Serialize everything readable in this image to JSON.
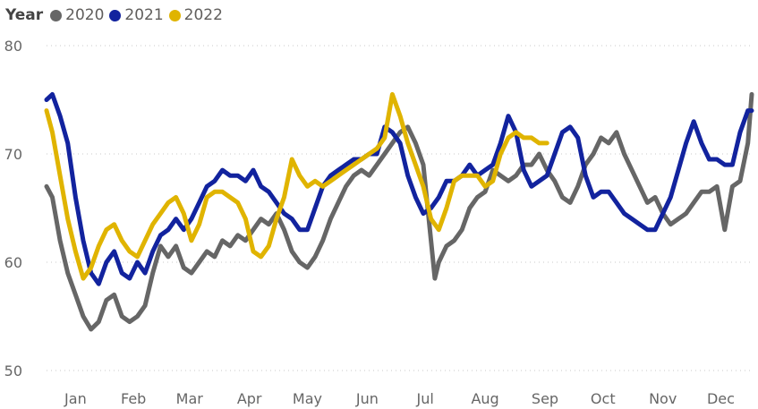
{
  "chart_data": {
    "type": "line",
    "title": "",
    "xlabel": "",
    "ylabel": "",
    "legend": {
      "title": "Year",
      "placement": "top-left"
    },
    "ylim": [
      50,
      80
    ],
    "yticks": [
      50,
      60,
      70,
      80
    ],
    "grid": {
      "y": true,
      "x": false,
      "style": "dotted"
    },
    "x_unit": "day of year",
    "xlim": [
      1,
      366
    ],
    "xticks": [
      {
        "label": "Jan",
        "day": 16
      },
      {
        "label": "Feb",
        "day": 46
      },
      {
        "label": "Mar",
        "day": 75
      },
      {
        "label": "Apr",
        "day": 106
      },
      {
        "label": "May",
        "day": 136
      },
      {
        "label": "Jun",
        "day": 167
      },
      {
        "label": "Jul",
        "day": 197
      },
      {
        "label": "Aug",
        "day": 228
      },
      {
        "label": "Sep",
        "day": 259
      },
      {
        "label": "Oct",
        "day": 289
      },
      {
        "label": "Nov",
        "day": 320
      },
      {
        "label": "Dec",
        "day": 350
      }
    ],
    "series": [
      {
        "name": "2020",
        "color": "#666666",
        "x": [
          1,
          4,
          8,
          12,
          16,
          20,
          24,
          28,
          32,
          36,
          40,
          44,
          48,
          52,
          56,
          60,
          64,
          68,
          72,
          76,
          80,
          84,
          88,
          92,
          96,
          100,
          104,
          108,
          112,
          116,
          120,
          124,
          128,
          132,
          136,
          140,
          144,
          148,
          152,
          156,
          160,
          164,
          168,
          172,
          176,
          180,
          184,
          188,
          192,
          196,
          200,
          202,
          204,
          208,
          212,
          216,
          220,
          224,
          228,
          232,
          236,
          240,
          244,
          248,
          252,
          256,
          260,
          264,
          268,
          272,
          276,
          280,
          284,
          288,
          292,
          296,
          300,
          304,
          308,
          312,
          316,
          320,
          324,
          328,
          332,
          336,
          340,
          344,
          348,
          352,
          356,
          360,
          364,
          366
        ],
        "y": [
          67,
          66,
          62,
          59,
          57,
          55,
          53.8,
          54.5,
          56.5,
          57,
          55,
          54.5,
          55,
          56,
          59,
          61.5,
          60.5,
          61.5,
          59.5,
          59,
          60,
          61,
          60.5,
          62,
          61.5,
          62.5,
          62,
          63,
          64,
          63.5,
          64.5,
          63,
          61,
          60,
          59.5,
          60.5,
          62,
          64,
          65.5,
          67,
          68,
          68.5,
          68,
          69,
          70,
          71,
          72,
          72.5,
          71,
          69,
          62,
          58.5,
          60,
          61.5,
          62,
          63,
          65,
          66,
          66.5,
          68.5,
          68,
          67.5,
          68,
          69,
          69,
          70,
          68.5,
          67.5,
          66,
          65.5,
          67,
          69,
          70,
          71.5,
          71,
          72,
          70,
          68.5,
          67,
          65.5,
          66,
          64.5,
          63.5,
          64,
          64.5,
          65.5,
          66.5,
          66.5,
          67,
          63,
          67,
          67.5,
          71,
          75.5
        ]
      },
      {
        "name": "2021",
        "color": "#12239e",
        "x": [
          1,
          4,
          8,
          12,
          16,
          20,
          24,
          28,
          32,
          36,
          40,
          44,
          48,
          52,
          56,
          60,
          64,
          68,
          72,
          76,
          80,
          84,
          88,
          92,
          96,
          100,
          104,
          108,
          112,
          116,
          120,
          124,
          128,
          132,
          136,
          140,
          144,
          148,
          152,
          156,
          160,
          164,
          168,
          172,
          176,
          180,
          184,
          188,
          192,
          196,
          200,
          204,
          208,
          212,
          216,
          220,
          224,
          228,
          232,
          236,
          240,
          244,
          248,
          252,
          256,
          260,
          264,
          268,
          272,
          276,
          280,
          284,
          288,
          292,
          296,
          300,
          304,
          308,
          312,
          316,
          320,
          324,
          328,
          332,
          336,
          340,
          344,
          348,
          352,
          356,
          360,
          364,
          366
        ],
        "y": [
          75,
          75.5,
          73.5,
          71,
          66,
          62,
          59,
          58,
          60,
          61,
          59,
          58.5,
          60,
          59,
          61,
          62.5,
          63,
          64,
          63,
          64,
          65.5,
          67,
          67.5,
          68.5,
          68,
          68,
          67.5,
          68.5,
          67,
          66.5,
          65.5,
          64.5,
          64,
          63,
          63,
          65,
          67,
          68,
          68.5,
          69,
          69.5,
          69.5,
          70,
          70,
          72.5,
          72,
          71,
          68,
          66,
          64.5,
          65,
          66,
          67.5,
          67.5,
          68,
          69,
          68,
          68.5,
          69,
          71,
          73.5,
          72,
          68.5,
          67,
          67.5,
          68,
          70,
          72,
          72.5,
          71.5,
          68,
          66,
          66.5,
          66.5,
          65.5,
          64.5,
          64,
          63.5,
          63,
          63,
          64.5,
          66,
          68.5,
          71,
          73,
          71,
          69.5,
          69.5,
          69,
          69,
          72,
          74,
          74
        ]
      },
      {
        "name": "2022",
        "color": "#e0b400",
        "x": [
          1,
          4,
          8,
          12,
          16,
          20,
          24,
          28,
          32,
          36,
          40,
          44,
          48,
          52,
          56,
          60,
          64,
          68,
          72,
          76,
          80,
          84,
          88,
          92,
          96,
          100,
          104,
          108,
          112,
          116,
          120,
          124,
          128,
          132,
          136,
          140,
          144,
          148,
          152,
          156,
          160,
          164,
          168,
          172,
          176,
          180,
          184,
          188,
          192,
          196,
          200,
          204,
          208,
          212,
          216,
          220,
          224,
          228,
          232,
          236,
          240,
          244,
          248,
          252,
          256,
          260
        ],
        "y": [
          74,
          72,
          68,
          64,
          61,
          58.5,
          59.5,
          61.5,
          63,
          63.5,
          62,
          61,
          60.5,
          62,
          63.5,
          64.5,
          65.5,
          66,
          64.5,
          62,
          63.5,
          66,
          66.5,
          66.5,
          66,
          65.5,
          64,
          61,
          60.5,
          61.5,
          64,
          66,
          69.5,
          68,
          67,
          67.5,
          67,
          67.5,
          68,
          68.5,
          69,
          69.5,
          70,
          70.5,
          71.5,
          75.5,
          73.5,
          71,
          69,
          67,
          64,
          63,
          65,
          67.5,
          68,
          68,
          68,
          67,
          67.5,
          70,
          71.5,
          72,
          71.5,
          71.5,
          71,
          71
        ]
      }
    ]
  }
}
